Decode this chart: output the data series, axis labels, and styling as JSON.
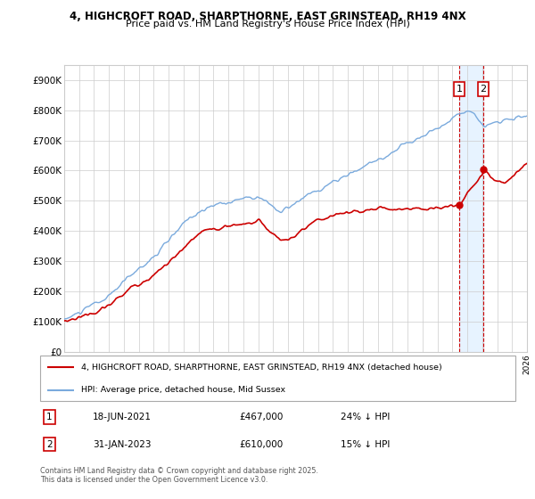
{
  "title1": "4, HIGHCROFT ROAD, SHARPTHORNE, EAST GRINSTEAD, RH19 4NX",
  "title2": "Price paid vs. HM Land Registry's House Price Index (HPI)",
  "legend_label_red": "4, HIGHCROFT ROAD, SHARPTHORNE, EAST GRINSTEAD, RH19 4NX (detached house)",
  "legend_label_blue": "HPI: Average price, detached house, Mid Sussex",
  "annotation1": {
    "num": "1",
    "date": "18-JUN-2021",
    "price": "£467,000",
    "hpi": "24% ↓ HPI"
  },
  "annotation2": {
    "num": "2",
    "date": "31-JAN-2023",
    "price": "£610,000",
    "hpi": "15% ↓ HPI"
  },
  "footnote": "Contains HM Land Registry data © Crown copyright and database right 2025.\nThis data is licensed under the Open Government Licence v3.0.",
  "red_color": "#cc0000",
  "blue_color": "#7aaadd",
  "shade_color": "#ddeeff",
  "vline_color": "#cc0000",
  "background_color": "#ffffff",
  "grid_color": "#cccccc",
  "year_start": 1995,
  "year_end": 2026,
  "ylim_max": 950000,
  "vline1_year": 2021.46,
  "vline2_year": 2023.08,
  "sale1_price": 467000,
  "sale2_price": 610000,
  "sale1_year": 2021.46,
  "sale2_year": 2023.08
}
